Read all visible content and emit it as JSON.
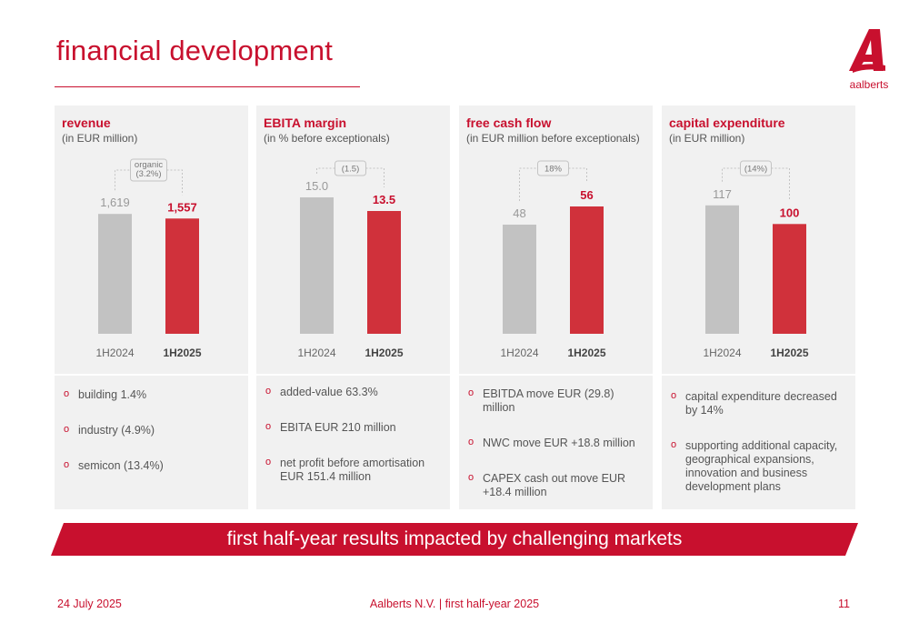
{
  "title": "financial development",
  "logo": {
    "wordmark": "aalberts",
    "mark": "A"
  },
  "colors": {
    "accent": "#c8102e",
    "bar_prior": "#c2c2c2",
    "bar_current": "#d0313b",
    "panel_bg": "#f1f1f1"
  },
  "panels": [
    {
      "title": "revenue",
      "subtitle": "(in EUR million)",
      "change_label": [
        "organic",
        "(3.2%)"
      ],
      "bullets": [
        "building 1.4%",
        "industry (4.9%)",
        "semicon (13.4%)"
      ]
    },
    {
      "title": "EBITA margin",
      "subtitle": "(in % before exceptionals)",
      "change_label": [
        "(1.5)"
      ],
      "bullets": [
        "added-value 63.3%",
        "EBITA EUR 210 million",
        "net profit before amortisation EUR 151.4 million"
      ]
    },
    {
      "title": "free cash flow",
      "subtitle": "(in EUR million before exceptionals)",
      "change_label": [
        "18%"
      ],
      "bullets": [
        "EBITDA move EUR (29.8) million",
        "NWC move EUR +18.8 million",
        "CAPEX cash out move EUR +18.4 million"
      ]
    },
    {
      "title": "capital expenditure",
      "subtitle": "(in EUR million)",
      "change_label": [
        "(14%)"
      ],
      "bullets": [
        "capital expenditure decreased by 14%",
        "supporting additional capacity, geographical expansions, innovation and business development plans"
      ]
    }
  ],
  "chart_data": [
    {
      "type": "bar",
      "categories": [
        "1H2024",
        "1H2025"
      ],
      "values": [
        1619,
        1557
      ],
      "value_labels": [
        "1,619",
        "1,557"
      ],
      "title": "revenue",
      "ylabel": "in EUR million",
      "ylim": [
        0,
        2150
      ]
    },
    {
      "type": "bar",
      "categories": [
        "1H2024",
        "1H2025"
      ],
      "values": [
        15.0,
        13.5
      ],
      "value_labels": [
        "15.0",
        "13.5"
      ],
      "title": "EBITA margin",
      "ylabel": "in % before exceptionals",
      "ylim": [
        0,
        17.5
      ]
    },
    {
      "type": "bar",
      "categories": [
        "1H2024",
        "1H2025"
      ],
      "values": [
        48,
        56
      ],
      "value_labels": [
        "48",
        "56"
      ],
      "title": "free cash flow",
      "ylabel": "in EUR million before exceptionals",
      "ylim": [
        0,
        70
      ]
    },
    {
      "type": "bar",
      "categories": [
        "1H2024",
        "1H2025"
      ],
      "values": [
        117,
        100
      ],
      "value_labels": [
        "117",
        "100"
      ],
      "title": "capital expenditure",
      "ylabel": "in EUR million",
      "ylim": [
        0,
        145
      ]
    }
  ],
  "banner": "first half-year results impacted by challenging markets",
  "footer": {
    "date": "24 July 2025",
    "center": "Aalberts N.V.  |  first half-year 2025",
    "page": "11"
  }
}
